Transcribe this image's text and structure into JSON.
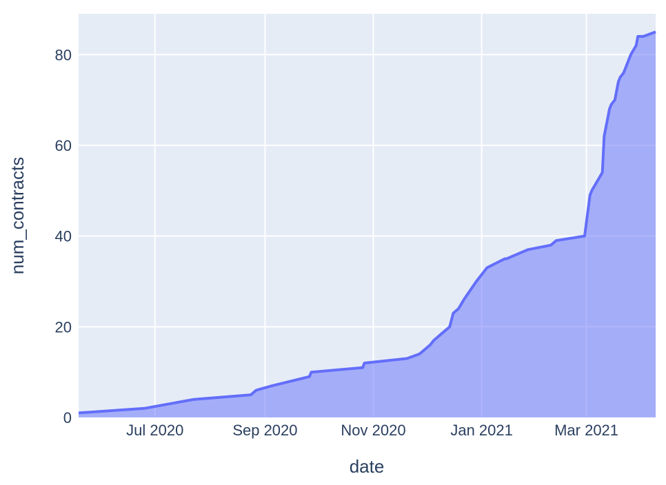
{
  "chart_data": {
    "type": "area",
    "xlabel": "date",
    "ylabel": "num_contracts",
    "xlim": [
      "2020-05-19",
      "2021-04-09"
    ],
    "ylim": [
      0,
      89
    ],
    "x_ticks": [
      {
        "date": "2020-07-01",
        "label": "Jul 2020"
      },
      {
        "date": "2020-09-01",
        "label": "Sep 2020"
      },
      {
        "date": "2020-11-01",
        "label": "Nov 2020"
      },
      {
        "date": "2021-01-01",
        "label": "Jan 2021"
      },
      {
        "date": "2021-03-01",
        "label": "Mar 2021"
      }
    ],
    "y_ticks": [
      0,
      20,
      40,
      60,
      80
    ],
    "grid": true,
    "colors": {
      "plot_bg": "#e5ecf6",
      "grid": "#ffffff",
      "line": "#636efa",
      "fill": "rgba(99,110,250,0.5)",
      "text": "#2a3f5f"
    },
    "series": [
      {
        "x": [
          "2020-05-19",
          "2020-06-25",
          "2020-07-23",
          "2020-08-24",
          "2020-08-27",
          "2020-09-05",
          "2020-09-26",
          "2020-09-27",
          "2020-10-26",
          "2020-10-27",
          "2020-11-20",
          "2020-11-27",
          "2020-12-03",
          "2020-12-05",
          "2020-12-14",
          "2020-12-16",
          "2020-12-19",
          "2020-12-22",
          "2020-12-29",
          "2021-01-04",
          "2021-01-09",
          "2021-01-14",
          "2021-01-15",
          "2021-01-27",
          "2021-02-09",
          "2021-02-12",
          "2021-02-28",
          "2021-03-03",
          "2021-03-04",
          "2021-03-10",
          "2021-03-11",
          "2021-03-12",
          "2021-03-13",
          "2021-03-14",
          "2021-03-15",
          "2021-03-17",
          "2021-03-19",
          "2021-03-20",
          "2021-03-22",
          "2021-03-24",
          "2021-03-26",
          "2021-03-29",
          "2021-03-30",
          "2021-04-02",
          "2021-04-09"
        ],
        "y": [
          1,
          2,
          4,
          5,
          6,
          7,
          9,
          10,
          11,
          12,
          13,
          14,
          16,
          17,
          20,
          23,
          24,
          26,
          30,
          33,
          34,
          35,
          35,
          37,
          38,
          39,
          40,
          49,
          50,
          54,
          62,
          64,
          66,
          68,
          69,
          70,
          74,
          75,
          76,
          78,
          80,
          82,
          84,
          84,
          85
        ]
      }
    ]
  }
}
